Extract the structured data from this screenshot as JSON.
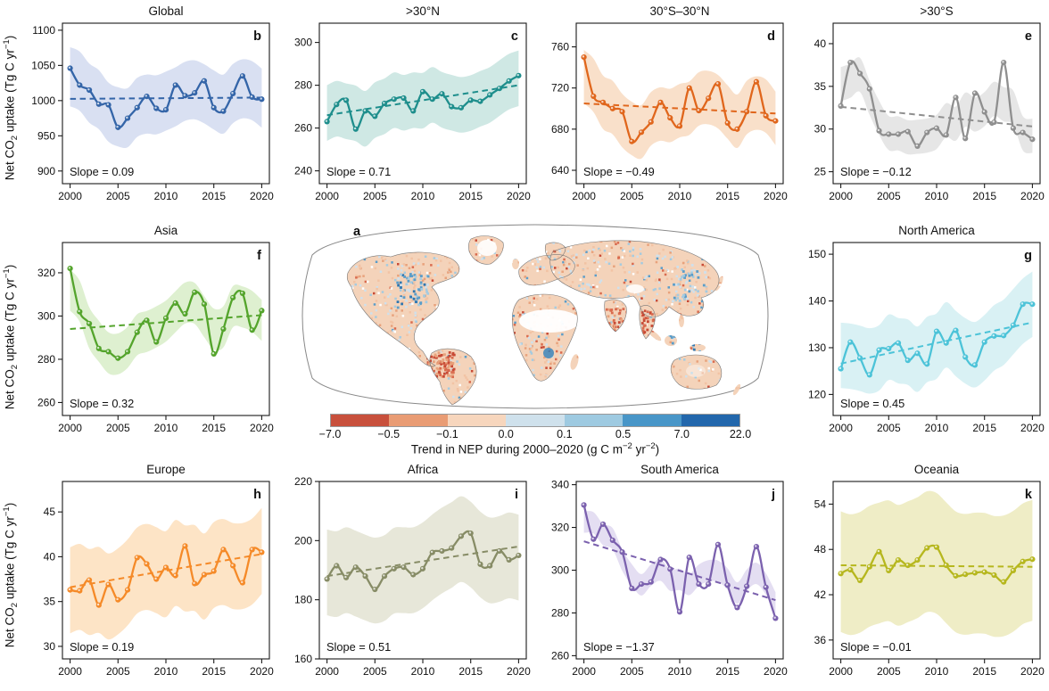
{
  "figure": {
    "ylabel": {
      "pre": "Net CO",
      "sub": "2",
      "mid": " uptake (Tg C yr",
      "sup": "−1",
      "post": ")"
    },
    "map": {
      "letter": "a",
      "colorbar": {
        "ticks": [
          "−7.0",
          "−0.5",
          "−0.1",
          "0.0",
          "0.1",
          "0.5",
          "7.0",
          "22.0"
        ],
        "colors": [
          "#c8503c",
          "#e99c74",
          "#f7d6bd",
          "#cfe1ec",
          "#9ecae1",
          "#4896c8",
          "#2267ac"
        ],
        "caption": {
          "pre": "Trend in NEP during 2000–2020 (g C m",
          "sup1": "−2",
          "mid": " yr",
          "sup2": "−2",
          "post": ")"
        }
      }
    }
  },
  "chart_data": {
    "type": "line",
    "shared": {
      "years": [
        2000,
        2001,
        2002,
        2003,
        2004,
        2005,
        2006,
        2007,
        2008,
        2009,
        2010,
        2011,
        2012,
        2013,
        2014,
        2015,
        2016,
        2017,
        2018,
        2019,
        2020
      ],
      "xticks": [
        2000,
        2005,
        2010,
        2015,
        2020
      ],
      "xlim": [
        1999.2,
        2020.8
      ],
      "ylabel": "Net CO2 uptake (Tg C yr−1)"
    },
    "panels": [
      {
        "id": "global",
        "title": "Global",
        "letter": "b",
        "slope": 0.09,
        "slope_label": "Slope = 0.09",
        "color": "#3465a8",
        "band_color": "#d9e0f2",
        "band_halfwidth": 42,
        "trend": [
          1002.5,
          1004.3
        ],
        "yticks": [
          900,
          950,
          1000,
          1050,
          1100
        ],
        "ylim": [
          882,
          1110
        ],
        "values": [
          1046,
          1022,
          1015,
          995,
          994,
          962,
          975,
          990,
          1006,
          989,
          987,
          1022,
          1007,
          1011,
          1028,
          990,
          985,
          1010,
          1035,
          1005,
          1002
        ]
      },
      {
        "id": "n30",
        "title": ">30°N",
        "letter": "c",
        "slope": 0.71,
        "slope_label": "Slope = 0.71",
        "color": "#1e8e8c",
        "band_color": "#cfe8e4",
        "band_halfwidth": 13,
        "trend": [
          266,
          280
        ],
        "yticks": [
          240,
          260,
          280,
          300
        ],
        "ylim": [
          234,
          309
        ],
        "values": [
          263,
          271,
          273,
          259.5,
          268,
          265.5,
          271.5,
          273.5,
          274,
          268,
          277,
          273.5,
          276,
          270,
          269.5,
          273,
          272.5,
          275.5,
          278.5,
          282,
          284.5
        ]
      },
      {
        "id": "tropics",
        "title": "30°S–30°N",
        "letter": "d",
        "slope": -0.49,
        "slope_label": "Slope = −0.49",
        "color": "#e0661c",
        "band_color": "#f9e0ca",
        "band_halfwidth": 26,
        "trend": [
          705,
          695.2
        ],
        "yticks": [
          640,
          680,
          720,
          760
        ],
        "ylim": [
          627,
          783
        ],
        "values": [
          750,
          712,
          706,
          700,
          697,
          668,
          677,
          687,
          706,
          691,
          683,
          720,
          698,
          710,
          724,
          686,
          680,
          697,
          726,
          693,
          688
        ]
      },
      {
        "id": "s30",
        "title": ">30°S",
        "letter": "e",
        "slope": -0.12,
        "slope_label": "Slope = −0.12",
        "color": "#8f8f8f",
        "band_color": "#e6e6e6",
        "band_halfwidth": 2,
        "trend": [
          32.6,
          30.3
        ],
        "yticks": [
          25,
          30,
          35,
          40
        ],
        "ylim": [
          23.6,
          42.4
        ],
        "values": [
          32.7,
          37.8,
          36.5,
          34.7,
          29.8,
          29.4,
          29.4,
          29.7,
          28,
          29.6,
          30.1,
          29.3,
          33.7,
          28.9,
          34.2,
          32,
          30.8,
          37.8,
          30.1,
          29.6,
          28.8
        ]
      },
      {
        "id": "asia",
        "title": "Asia",
        "letter": "f",
        "slope": 0.32,
        "slope_label": "Slope = 0.32",
        "color": "#54a42c",
        "band_color": "#def0d0",
        "band_halfwidth": 9.5,
        "trend": [
          294,
          300.4
        ],
        "yticks": [
          260,
          280,
          300,
          320
        ],
        "ylim": [
          254,
          334
        ],
        "values": [
          322,
          302,
          296.5,
          285,
          283.5,
          280.5,
          283.5,
          292.5,
          298,
          288,
          299,
          306,
          301,
          311,
          305.5,
          282.5,
          294,
          308.5,
          310.5,
          293.5,
          302.5
        ]
      },
      {
        "id": "namerica",
        "title": "North America",
        "letter": "g",
        "slope": 0.45,
        "slope_label": "Slope = 0.45",
        "color": "#4cc3d8",
        "band_color": "#d9f1f4",
        "band_halfwidth": 7,
        "trend": [
          126.6,
          135.4
        ],
        "yticks": [
          120,
          130,
          140,
          150
        ],
        "ylim": [
          115.5,
          152.5
        ],
        "values": [
          125.5,
          131.2,
          127.8,
          124.2,
          129.5,
          129.8,
          131,
          127.3,
          128.8,
          126.5,
          133.5,
          131,
          133.7,
          128,
          126.3,
          131.2,
          132.5,
          132.6,
          134.8,
          139.3,
          139.3
        ]
      },
      {
        "id": "europe",
        "title": "Europe",
        "letter": "h",
        "slope": 0.19,
        "slope_label": "Slope = 0.19",
        "color": "#f58a28",
        "band_color": "#fde4c6",
        "band_halfwidth": 4.8,
        "trend": [
          36.6,
          40.3
        ],
        "yticks": [
          30,
          35,
          40,
          45
        ],
        "ylim": [
          28.6,
          48.4
        ],
        "values": [
          36.3,
          36.2,
          37.4,
          34.6,
          36.9,
          35.2,
          36.3,
          39.9,
          39.2,
          37.5,
          38.8,
          37.9,
          41.2,
          37,
          38,
          38.4,
          40.8,
          39,
          37.1,
          40.8,
          40.5
        ]
      },
      {
        "id": "africa",
        "title": "Africa",
        "letter": "i",
        "slope": 0.51,
        "slope_label": "Slope = 0.51",
        "color": "#878c66",
        "band_color": "#e7e7d9",
        "band_halfwidth": 14.5,
        "trend": [
          188,
          198
        ],
        "yticks": [
          160,
          180,
          200,
          220
        ],
        "ylim": [
          160,
          220
        ],
        "values": [
          187,
          191.5,
          187.5,
          191,
          188,
          183.5,
          188,
          190.5,
          191,
          188.5,
          190.5,
          196,
          196.5,
          197.5,
          201.5,
          202.5,
          192,
          191.5,
          196.5,
          193.5,
          195
        ]
      },
      {
        "id": "samerica",
        "title": "South America",
        "letter": "j",
        "slope": -1.37,
        "slope_label": "Slope = −1.37",
        "color": "#7b61ae",
        "band_color": "#e4def2",
        "band_halfwidth": 5,
        "trend": [
          313.5,
          286
        ],
        "yticks": [
          260,
          280,
          300,
          320,
          340
        ],
        "ylim": [
          258.5,
          341.5
        ],
        "values": [
          330.5,
          314.5,
          321.5,
          314,
          308.5,
          291.5,
          293.5,
          294.5,
          305,
          300.5,
          280.5,
          306,
          293.5,
          293.5,
          312,
          293,
          282.5,
          292.5,
          311,
          292,
          277.5
        ]
      },
      {
        "id": "oceania",
        "title": "Oceania",
        "letter": "k",
        "slope": -0.01,
        "slope_label": "Slope = −0.01",
        "color": "#b6b71e",
        "band_color": "#efedc6",
        "band_halfwidth": 8,
        "trend": [
          45.9,
          45.7
        ],
        "yticks": [
          36,
          42,
          48,
          54
        ],
        "ylim": [
          33.5,
          57
        ],
        "values": [
          44.8,
          45.3,
          43.9,
          45.7,
          47.7,
          45.2,
          46.6,
          45.9,
          46.6,
          48.2,
          48.3,
          45.9,
          44.5,
          44.7,
          44.9,
          45,
          44.6,
          43.7,
          45.2,
          46.4,
          46.7
        ]
      }
    ]
  }
}
